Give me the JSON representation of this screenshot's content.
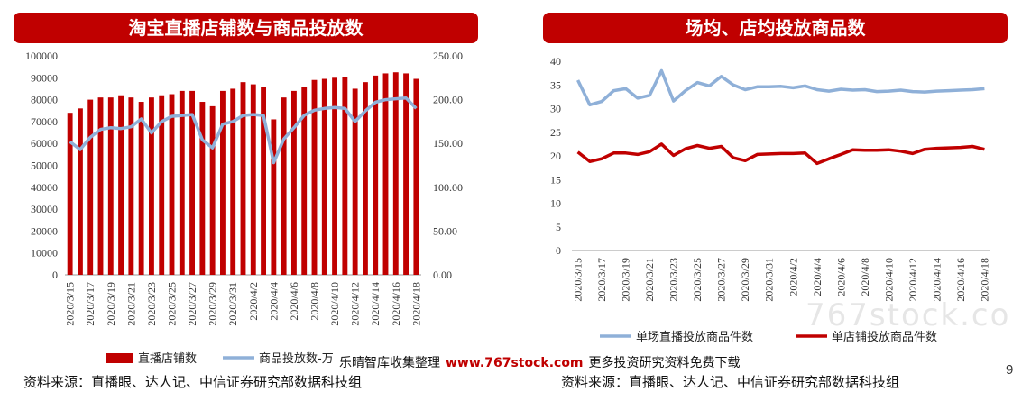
{
  "left_panel": {
    "title": "淘宝直播店铺数与商品投放数",
    "source": "资料来源：直播眼、达人记、中信证券研究部数据科技组"
  },
  "right_panel": {
    "title": "场均、店均投放商品数",
    "source": "资料来源：直播眼、达人记、中信证券研究部数据科技组"
  },
  "watermark": {
    "bar_left": "乐晴智库收集整理",
    "url": "www.767stock.com",
    "bar_right": "更多投资研究资料免费下载",
    "faint": "767stock.co"
  },
  "page_number": "9",
  "colors": {
    "bar": "#c00000",
    "line_blue": "#8fb0d8",
    "line_red": "#c00000"
  },
  "chart_data": [
    {
      "type": "bar+line",
      "title": "淘宝直播店铺数与商品投放数",
      "categories": [
        "2020/3/15",
        "2020/3/16",
        "2020/3/17",
        "2020/3/18",
        "2020/3/19",
        "2020/3/20",
        "2020/3/21",
        "2020/3/22",
        "2020/3/23",
        "2020/3/24",
        "2020/3/25",
        "2020/3/26",
        "2020/3/27",
        "2020/3/28",
        "2020/3/29",
        "2020/3/30",
        "2020/3/31",
        "2020/4/1",
        "2020/4/2",
        "2020/4/3",
        "2020/4/4",
        "2020/4/5",
        "2020/4/6",
        "2020/4/7",
        "2020/4/8",
        "2020/4/9",
        "2020/4/10",
        "2020/4/11",
        "2020/4/12",
        "2020/4/13",
        "2020/4/14",
        "2020/4/15",
        "2020/4/16",
        "2020/4/17",
        "2020/4/18"
      ],
      "x_tick_labels": [
        "2020/3/15",
        "2020/3/17",
        "2020/3/19",
        "2020/3/21",
        "2020/3/23",
        "2020/3/25",
        "2020/3/27",
        "2020/3/29",
        "2020/3/31",
        "2020/4/2",
        "2020/4/4",
        "2020/4/6",
        "2020/4/8",
        "2020/4/10",
        "2020/4/12",
        "2020/4/14",
        "2020/4/16",
        "2020/4/18"
      ],
      "y_left": {
        "min": 0,
        "max": 100000,
        "step": 10000,
        "tick_labels": [
          "0",
          "10000",
          "20000",
          "30000",
          "40000",
          "50000",
          "60000",
          "70000",
          "80000",
          "90000",
          "100000"
        ]
      },
      "y_right": {
        "min": 0,
        "max": 250,
        "step": 50,
        "tick_labels": [
          "0.00",
          "50.00",
          "100.00",
          "150.00",
          "200.00",
          "250.00"
        ]
      },
      "series": [
        {
          "name": "直播店铺数",
          "type": "bar",
          "axis": "left",
          "values": [
            74000,
            76000,
            80000,
            81000,
            81000,
            82000,
            81000,
            79000,
            81000,
            82000,
            82500,
            84000,
            84000,
            79000,
            77000,
            84000,
            85000,
            88000,
            87000,
            86000,
            71000,
            81000,
            84000,
            86000,
            89000,
            89500,
            90000,
            90500,
            85000,
            88000,
            91000,
            92000,
            92500,
            92000,
            89500
          ]
        },
        {
          "name": "商品投放数-万",
          "type": "line",
          "axis": "right",
          "values": [
            152,
            143,
            157,
            166,
            168,
            167,
            169,
            178,
            162,
            175,
            181,
            182,
            183,
            154,
            145,
            172,
            175,
            182,
            183,
            182,
            128,
            155,
            168,
            182,
            188,
            190,
            191,
            190,
            175,
            187,
            197,
            200,
            201,
            202,
            190
          ]
        }
      ],
      "legend": [
        {
          "label": "直播店铺数",
          "marker": "bar"
        },
        {
          "label": "商品投放数-万",
          "marker": "line"
        }
      ]
    },
    {
      "type": "line",
      "title": "场均、店均投放商品数",
      "categories": [
        "2020/3/15",
        "2020/3/16",
        "2020/3/17",
        "2020/3/18",
        "2020/3/19",
        "2020/3/20",
        "2020/3/21",
        "2020/3/22",
        "2020/3/23",
        "2020/3/24",
        "2020/3/25",
        "2020/3/26",
        "2020/3/27",
        "2020/3/28",
        "2020/3/29",
        "2020/3/30",
        "2020/3/31",
        "2020/4/1",
        "2020/4/2",
        "2020/4/3",
        "2020/4/4",
        "2020/4/5",
        "2020/4/6",
        "2020/4/7",
        "2020/4/8",
        "2020/4/9",
        "2020/4/10",
        "2020/4/11",
        "2020/4/12",
        "2020/4/13",
        "2020/4/14",
        "2020/4/15",
        "2020/4/16",
        "2020/4/17",
        "2020/4/18"
      ],
      "x_tick_labels": [
        "2020/3/15",
        "2020/3/17",
        "2020/3/19",
        "2020/3/21",
        "2020/3/23",
        "2020/3/25",
        "2020/3/27",
        "2020/3/29",
        "2020/3/31",
        "2020/4/2",
        "2020/4/4",
        "2020/4/6",
        "2020/4/8",
        "2020/4/10",
        "2020/4/12",
        "2020/4/14",
        "2020/4/16",
        "2020/4/18"
      ],
      "y": {
        "min": 0,
        "max": 40,
        "step": 5,
        "tick_labels": [
          "0",
          "5",
          "10",
          "15",
          "20",
          "25",
          "30",
          "35",
          "40"
        ]
      },
      "series": [
        {
          "name": "单场直播投放商品件数",
          "values": [
            36,
            30.8,
            31.5,
            33.8,
            34.2,
            32.2,
            32.8,
            38,
            31.6,
            33.8,
            35.5,
            34.8,
            36.8,
            35,
            34,
            34.6,
            34.6,
            34.7,
            34.4,
            34.8,
            34,
            33.7,
            34.1,
            33.9,
            34,
            33.6,
            33.7,
            33.9,
            33.6,
            33.5,
            33.7,
            33.8,
            33.9,
            34,
            34.2
          ]
        },
        {
          "name": "单店铺投放商品件数",
          "values": [
            20.8,
            18.8,
            19.4,
            20.6,
            20.6,
            20.3,
            20.9,
            22.5,
            20.1,
            21.5,
            22.2,
            21.6,
            22,
            19.6,
            19,
            20.3,
            20.4,
            20.5,
            20.5,
            20.6,
            18.4,
            19.4,
            20.3,
            21.3,
            21.2,
            21.2,
            21.3,
            21,
            20.5,
            21.4,
            21.6,
            21.7,
            21.8,
            22,
            21.4
          ]
        }
      ],
      "legend": [
        {
          "label": "单场直播投放商品件数"
        },
        {
          "label": "单店铺投放商品件数"
        }
      ]
    }
  ]
}
